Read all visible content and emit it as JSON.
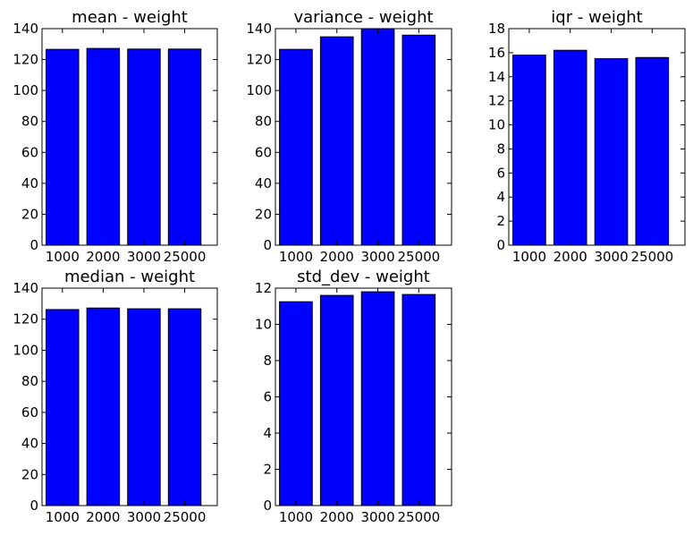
{
  "colors": {
    "bar_fill": "#0000ff",
    "bar_edge": "#000000",
    "frame": "#000000"
  },
  "chart_data": [
    {
      "type": "bar",
      "title": "mean - weight",
      "categories": [
        "1000",
        "2000",
        "3000",
        "25000"
      ],
      "values": [
        126.6,
        127.2,
        126.8,
        126.8
      ],
      "ylim": [
        0,
        140
      ],
      "yticks": [
        "0",
        "20",
        "40",
        "60",
        "80",
        "100",
        "120",
        "140"
      ],
      "xlabel": "",
      "ylabel": "",
      "grid": false
    },
    {
      "type": "bar",
      "title": "variance - weight",
      "categories": [
        "1000",
        "2000",
        "3000",
        "25000"
      ],
      "values": [
        126.6,
        134.7,
        140.0,
        135.8
      ],
      "ylim": [
        0,
        140
      ],
      "yticks": [
        "0",
        "20",
        "40",
        "60",
        "80",
        "100",
        "120",
        "140"
      ],
      "xlabel": "",
      "ylabel": "",
      "grid": false
    },
    {
      "type": "bar",
      "title": "iqr - weight",
      "categories": [
        "1000",
        "2000",
        "3000",
        "25000"
      ],
      "values": [
        15.8,
        16.2,
        15.5,
        15.6
      ],
      "ylim": [
        0,
        18
      ],
      "yticks": [
        "0",
        "2",
        "4",
        "6",
        "8",
        "10",
        "12",
        "14",
        "16",
        "18"
      ],
      "xlabel": "",
      "ylabel": "",
      "grid": false
    },
    {
      "type": "bar",
      "title": "median - weight",
      "categories": [
        "1000",
        "2000",
        "3000",
        "25000"
      ],
      "values": [
        126.2,
        127.2,
        126.7,
        126.7
      ],
      "ylim": [
        0,
        140
      ],
      "yticks": [
        "0",
        "20",
        "40",
        "60",
        "80",
        "100",
        "120",
        "140"
      ],
      "xlabel": "",
      "ylabel": "",
      "grid": false
    },
    {
      "type": "bar",
      "title": "std_dev - weight",
      "categories": [
        "1000",
        "2000",
        "3000",
        "25000"
      ],
      "values": [
        11.25,
        11.6,
        11.8,
        11.65
      ],
      "ylim": [
        0,
        12
      ],
      "yticks": [
        "0",
        "2",
        "4",
        "6",
        "8",
        "10",
        "12"
      ],
      "xlabel": "",
      "ylabel": "",
      "grid": false
    }
  ]
}
